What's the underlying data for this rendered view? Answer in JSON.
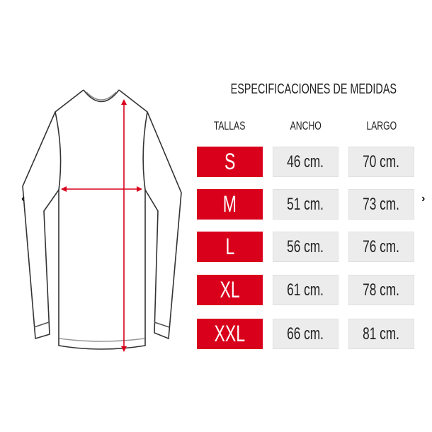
{
  "title": "ESPECIFICACIONES DE MEDIDAS",
  "headers": {
    "size": "TALLAS",
    "width": "ANCHO",
    "length": "LARGO"
  },
  "rows": [
    {
      "size": "S",
      "width": "46 cm.",
      "length": "70 cm."
    },
    {
      "size": "M",
      "width": "51 cm.",
      "length": "73 cm."
    },
    {
      "size": "L",
      "width": "56 cm.",
      "length": "76 cm."
    },
    {
      "size": "XL",
      "width": "61 cm.",
      "length": "78 cm."
    },
    {
      "size": "XXL",
      "width": "66 cm.",
      "length": "81 cm."
    }
  ],
  "nav": {
    "prev": "‹",
    "next": "›"
  },
  "colors": {
    "size_bg": "#d9001b",
    "value_bg": "#ececec",
    "arrow": "#d9001b"
  },
  "icons": {
    "illustration": "long-sleeve-shirt-outline",
    "prev": "chevron-left-icon",
    "next": "chevron-right-icon"
  }
}
